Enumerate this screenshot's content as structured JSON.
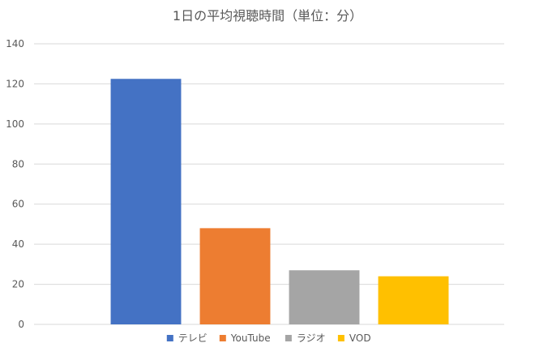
{
  "chart_data": {
    "type": "bar",
    "title": "1日の平均視聴時間（単位：分）",
    "xlabel": "",
    "ylabel": "",
    "categories": [
      "テレビ",
      "YouTube",
      "ラジオ",
      "VOD"
    ],
    "values": [
      122.5,
      48,
      27,
      24
    ],
    "colors": [
      "#4472C4",
      "#ED7D31",
      "#A5A5A5",
      "#FFC000"
    ],
    "ylim": [
      0,
      140
    ],
    "yticks": [
      "0",
      "20",
      "40",
      "60",
      "80",
      "100",
      "120",
      "140"
    ],
    "grid": true,
    "legend_position": "bottom"
  }
}
